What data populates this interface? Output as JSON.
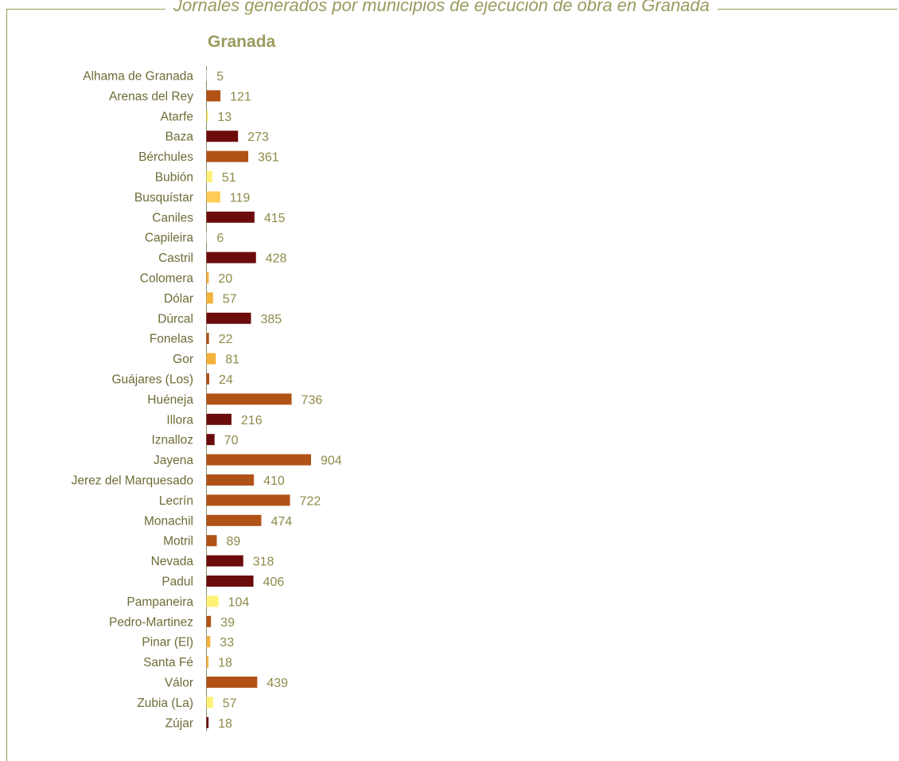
{
  "header": {
    "title": "Jornales generados por municipios de ejecución de obra en Granada"
  },
  "chart_data": {
    "type": "bar",
    "orientation": "horizontal",
    "title": "Granada",
    "categories": [
      "Alhama de Granada",
      "Arenas del Rey",
      "Atarfe",
      "Baza",
      "Bérchules",
      "Bubión",
      "Busquístar",
      "Caniles",
      "Capileira",
      "Castril",
      "Colomera",
      "Dólar",
      "Dúrcal",
      "Fonelas",
      "Gor",
      "Guájares (Los)",
      "Huéneja",
      "Illora",
      "Iznalloz",
      "Jayena",
      "Jerez del Marquesado",
      "Lecrín",
      "Monachil",
      "Motril",
      "Nevada",
      "Padul",
      "Pampaneira",
      "Pedro-Martinez",
      "Pinar (El)",
      "Santa Fé",
      "Válor",
      "Zubia (La)",
      "Zújar"
    ],
    "values": [
      5,
      121,
      13,
      273,
      361,
      51,
      119,
      415,
      6,
      428,
      20,
      57,
      385,
      22,
      81,
      24,
      736,
      216,
      70,
      904,
      410,
      722,
      474,
      89,
      318,
      406,
      104,
      39,
      33,
      18,
      439,
      57,
      18
    ],
    "colors": [
      "#ffffff",
      "#b05216",
      "#f5e663",
      "#6b0b0b",
      "#b05216",
      "#fff176",
      "#ffcc55",
      "#6b0b0b",
      "#ffffff",
      "#6b0b0b",
      "#f3b23a",
      "#f3b23a",
      "#6b0b0b",
      "#b05216",
      "#f3b23a",
      "#b05216",
      "#b05216",
      "#6b0b0b",
      "#6b0b0b",
      "#b05216",
      "#b05216",
      "#b05216",
      "#b05216",
      "#b05216",
      "#6b0b0b",
      "#6b0b0b",
      "#fff176",
      "#b05216",
      "#f3b23a",
      "#f3b23a",
      "#b05216",
      "#fff176",
      "#6b0b0b"
    ],
    "xlim": [
      0,
      1000
    ],
    "grid": false,
    "legend": "none"
  }
}
